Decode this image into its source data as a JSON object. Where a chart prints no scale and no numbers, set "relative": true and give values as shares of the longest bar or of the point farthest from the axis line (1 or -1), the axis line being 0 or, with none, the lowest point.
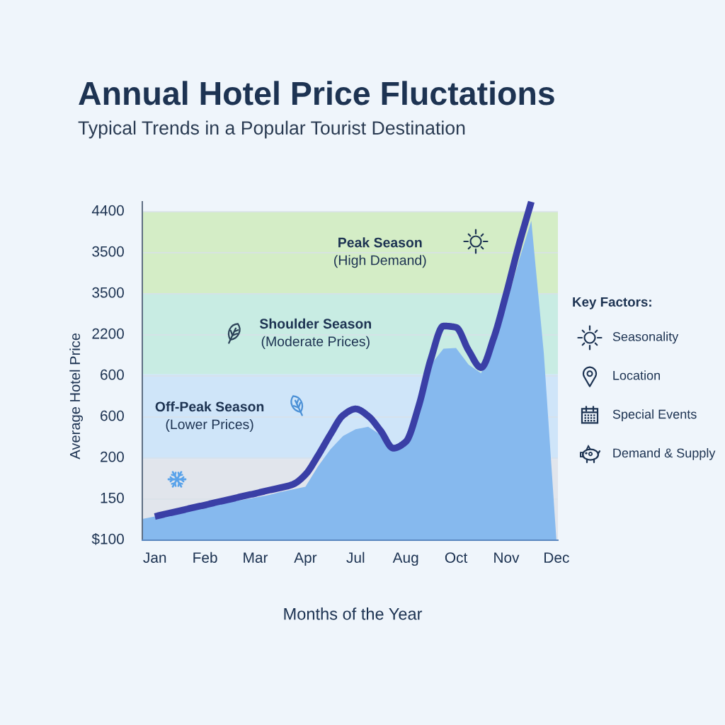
{
  "chart_data": [
    {
      "type": "line",
      "title": "Annual Hotel Price Fluctations",
      "subtitle": "Typical Trends in a Popular Tourist Destination",
      "xlabel": "Months of the Year",
      "ylabel": "Average Hotel Price",
      "relative": true,
      "categories": [
        null,
        "Jan",
        null,
        null,
        null,
        "Feb",
        null,
        null,
        null,
        "Mar",
        null,
        null,
        null,
        "Apr",
        null,
        null,
        null,
        "Jul",
        null,
        null,
        null,
        "Aug",
        null,
        null,
        null,
        "Oct",
        null,
        null,
        null,
        "Nov",
        null,
        null,
        null,
        "Dec"
      ],
      "annotations": [
        "4400",
        "3500",
        "3500",
        "2200",
        "600",
        "600",
        "200",
        "150",
        "$100"
      ],
      "grid": "y",
      "bands": [
        {
          "axis": "y",
          "from": 0.73,
          "to": 0.97,
          "label": "Peak Season\n(High Demand)",
          "color": "#d4edc6"
        },
        {
          "axis": "y",
          "from": 0.49,
          "to": 0.73,
          "label": "Shoulder Season\n(Moderate Prices)",
          "color": "#c8ece3"
        },
        {
          "axis": "y",
          "from": 0.24,
          "to": 0.49,
          "label": "Off-Peak Season\n(Lower Prices)",
          "color": "#cfe5f9"
        },
        {
          "axis": "y",
          "from": 0,
          "to": 0.24,
          "color": "#e1e5ec"
        }
      ],
      "series": [
        {
          "type": "area",
          "color": "#86b9ee",
          "values": [
            0.063,
            0.07,
            0.078,
            0.085,
            0.092,
            0.1,
            0.107,
            0.113,
            0.119,
            0.126,
            0.133,
            0.142,
            0.15,
            0.158,
            0.218,
            0.269,
            0.308,
            0.328,
            0.335,
            0.311,
            0.265,
            0.296,
            0.415,
            0.519,
            0.566,
            0.568,
            0.519,
            0.493,
            0.587,
            0.694,
            0.825,
            0.944,
            0.551,
            0.0
          ]
        },
        {
          "type": "line",
          "color": "#3a3fa6",
          "values": [
            null,
            0.07,
            0.079,
            0.087,
            0.096,
            0.104,
            0.113,
            0.121,
            0.13,
            0.138,
            0.147,
            0.155,
            0.165,
            0.194,
            0.25,
            0.313,
            0.369,
            0.388,
            0.367,
            0.323,
            0.272,
            0.291,
            0.393,
            0.536,
            0.633,
            0.629,
            0.561,
            0.51,
            0.597,
            0.728,
            0.871,
            1.0,
            null,
            null
          ]
        }
      ]
    },
    {
      "type": "other",
      "title": "Key Factors:",
      "annotations": [
        "Seasonality",
        "Location",
        "Special Events",
        "Demand & Supply"
      ]
    }
  ]
}
